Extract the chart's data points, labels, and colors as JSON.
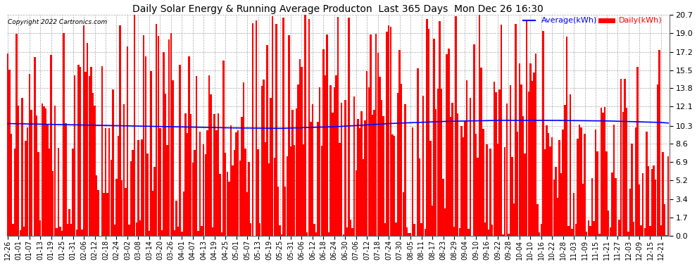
{
  "title": "Daily Solar Energy & Running Average Producton  Last 365 Days  Mon Dec 26 16:30",
  "copyright": "Copyright 2022 Cartronics.com",
  "legend_avg": "Average(kWh)",
  "legend_daily": "Daily(kWh)",
  "yticks": [
    0.0,
    1.7,
    3.4,
    5.2,
    6.9,
    8.6,
    10.3,
    12.1,
    13.8,
    15.5,
    17.2,
    19.0,
    20.7
  ],
  "ymax": 20.7,
  "ymin": 0.0,
  "bar_color": "#ff0000",
  "avg_color": "#0000ff",
  "bg_color": "#ffffff",
  "grid_color": "#aaaaaa",
  "title_color": "#000000",
  "copyright_color": "#000000",
  "avg_color_legend": "#0000ff",
  "daily_color_legend": "#ff0000",
  "x_labels": [
    "12-26",
    "01-01",
    "01-07",
    "01-13",
    "01-19",
    "01-25",
    "01-31",
    "02-06",
    "02-12",
    "02-18",
    "02-24",
    "03-02",
    "03-08",
    "03-14",
    "03-20",
    "03-26",
    "04-01",
    "04-07",
    "04-13",
    "04-19",
    "04-25",
    "05-01",
    "05-07",
    "05-13",
    "05-19",
    "05-25",
    "05-31",
    "06-06",
    "06-12",
    "06-18",
    "06-24",
    "06-30",
    "07-06",
    "07-12",
    "07-18",
    "07-24",
    "07-30",
    "08-05",
    "08-11",
    "08-17",
    "08-23",
    "08-29",
    "09-04",
    "09-10",
    "09-16",
    "09-22",
    "09-28",
    "10-04",
    "10-10",
    "10-16",
    "10-22",
    "10-28",
    "11-03",
    "11-09",
    "11-15",
    "11-21",
    "11-27",
    "12-03",
    "12-09",
    "12-15",
    "12-21"
  ],
  "running_avg_keypoints": [
    [
      0,
      10.5
    ],
    [
      30,
      10.4
    ],
    [
      60,
      10.3
    ],
    [
      90,
      10.2
    ],
    [
      120,
      10.1
    ],
    [
      150,
      10.05
    ],
    [
      180,
      10.2
    ],
    [
      210,
      10.5
    ],
    [
      240,
      10.7
    ],
    [
      270,
      10.8
    ],
    [
      300,
      10.8
    ],
    [
      330,
      10.75
    ],
    [
      360,
      10.6
    ],
    [
      364,
      10.55
    ]
  ]
}
